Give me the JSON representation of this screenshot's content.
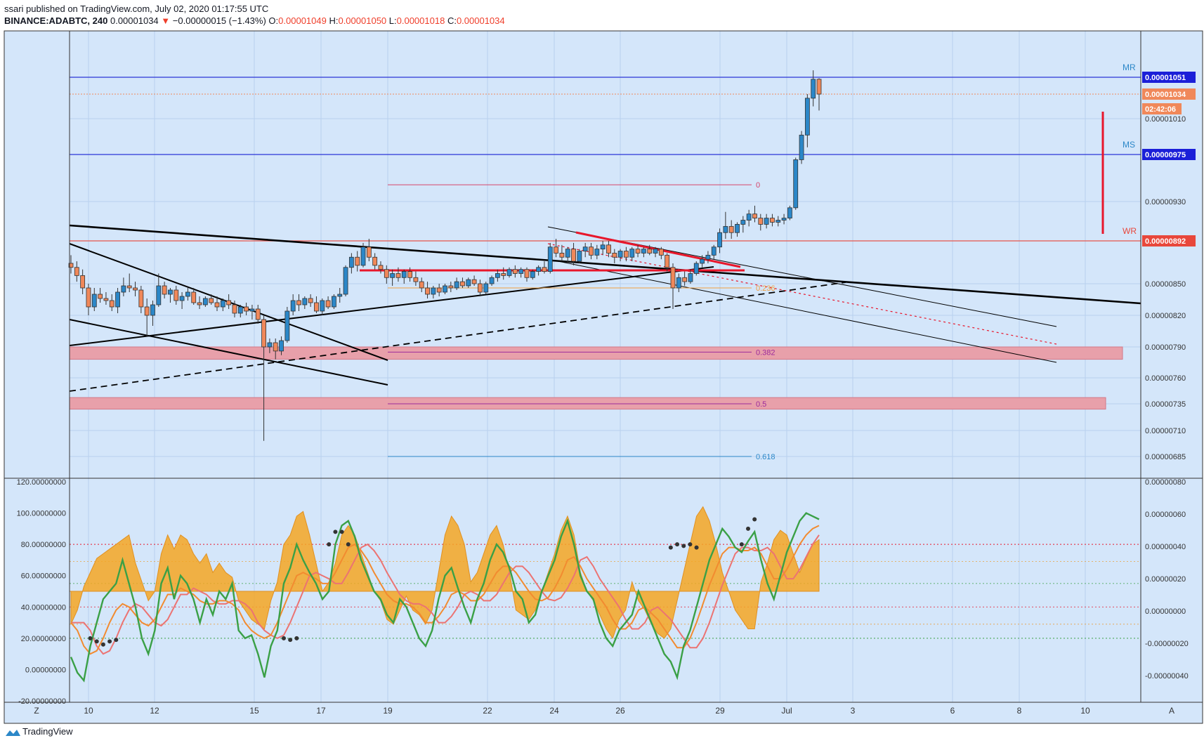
{
  "header": {
    "published": "ssari published on TradingView.com, July 02, 2020 01:17:55 UTC",
    "symbol": "BINANCE:ADABTC, 240",
    "last": "0.00001034",
    "arrow": "▼",
    "change": "−0.00000015 (−1.43%)",
    "o_label": "O:",
    "o": "0.00001049",
    "h_label": "H:",
    "h": "0.00001050",
    "l_label": "L:",
    "l": "0.00001018",
    "c_label": "C:",
    "c": "0.00001034"
  },
  "colors": {
    "background": "#d4e6fa",
    "up": "#2b87c8",
    "down": "#f0885a",
    "trend": "#000000",
    "red": "#e8162b",
    "zone": "#e8a0aa",
    "fill": "#f5a623",
    "green": "#3aa046",
    "orangeLine": "#f28b30",
    "pinkLine": "#ec7372"
  },
  "price_axis": {
    "ticks": [
      "0.00001010",
      "0.00000930",
      "0.00000850",
      "0.00000820",
      "0.00000790",
      "0.00000760",
      "0.00000735",
      "0.00000710",
      "0.00000685"
    ],
    "labels": [
      {
        "text": "0.00001051",
        "tag": "MR",
        "kind": "blue"
      },
      {
        "text": "0.00001034",
        "kind": "orange"
      },
      {
        "text": "02:42:06",
        "kind": "orange-small"
      },
      {
        "text": "0.00000975",
        "tag": "MS",
        "kind": "blue"
      },
      {
        "text": "0.00000892",
        "tag": "WR",
        "kind": "red"
      }
    ]
  },
  "fib_labels": [
    "0",
    "0.236",
    "0.382",
    "0.5",
    "0.618"
  ],
  "time_axis": {
    "left_button": "Z",
    "right_button": "A",
    "ticks": [
      "10",
      "12",
      "15",
      "17",
      "19",
      "22",
      "24",
      "26",
      "29",
      "Jul",
      "3",
      "6",
      "8",
      "10"
    ]
  },
  "indicator_axis": {
    "left_ticks": [
      "120.00000000",
      "100.00000000",
      "80.00000000",
      "60.00000000",
      "40.00000000",
      "20.00000000",
      "0.00000000",
      "-20.00000000"
    ],
    "right_ticks": [
      "0.00000080",
      "0.00000060",
      "0.00000040",
      "0.00000020",
      "0.00000000",
      "-0.00000020",
      "-0.00000040"
    ]
  },
  "footer": {
    "brand": "TradingView"
  },
  "chart_data": {
    "type": "candlestick",
    "title": "BINANCE:ADABTC, 240",
    "ohlc": [
      [
        8.7e-06,
        8.78e-06,
        8.6e-06,
        8.66e-06
      ],
      [
        8.66e-06,
        8.72e-06,
        8.52e-06,
        8.58e-06
      ],
      [
        8.58e-06,
        8.64e-06,
        8.4e-06,
        8.46e-06
      ],
      [
        8.46e-06,
        8.5e-06,
        8.2e-06,
        8.28e-06
      ],
      [
        8.28e-06,
        8.46e-06,
        8.24e-06,
        8.4e-06
      ],
      [
        8.4e-06,
        8.46e-06,
        8.32e-06,
        8.36e-06
      ],
      [
        8.36e-06,
        8.42e-06,
        8.3e-06,
        8.34e-06
      ],
      [
        8.34e-06,
        8.4e-06,
        8.24e-06,
        8.28e-06
      ],
      [
        8.28e-06,
        8.46e-06,
        8.22e-06,
        8.42e-06
      ],
      [
        8.42e-06,
        8.56e-06,
        8.38e-06,
        8.48e-06
      ],
      [
        8.48e-06,
        8.6e-06,
        8.42e-06,
        8.46e-06
      ],
      [
        8.46e-06,
        8.52e-06,
        8.38e-06,
        8.44e-06
      ],
      [
        8.44e-06,
        8.48e-06,
        8.22e-06,
        8.28e-06
      ],
      [
        8.28e-06,
        8.36e-06,
        8e-06,
        8.2e-06
      ],
      [
        8.2e-06,
        8.34e-06,
        8.1e-06,
        8.3e-06
      ],
      [
        8.3e-06,
        8.6e-06,
        8.28e-06,
        8.48e-06
      ],
      [
        8.48e-06,
        8.52e-06,
        8.36e-06,
        8.4e-06
      ],
      [
        8.4e-06,
        8.46e-06,
        8.32e-06,
        8.44e-06
      ],
      [
        8.44e-06,
        8.48e-06,
        8.3e-06,
        8.34e-06
      ],
      [
        8.34e-06,
        8.42e-06,
        8.26e-06,
        8.38e-06
      ],
      [
        8.38e-06,
        8.46e-06,
        8.34e-06,
        8.42e-06
      ],
      [
        8.42e-06,
        8.46e-06,
        8.3e-06,
        8.32e-06
      ],
      [
        8.32e-06,
        8.38e-06,
        8.26e-06,
        8.3e-06
      ],
      [
        8.3e-06,
        8.38e-06,
        8.28e-06,
        8.36e-06
      ],
      [
        8.36e-06,
        8.4e-06,
        8.3e-06,
        8.32e-06
      ],
      [
        8.32e-06,
        8.38e-06,
        8.24e-06,
        8.28e-06
      ],
      [
        8.28e-06,
        8.36e-06,
        8.24e-06,
        8.34e-06
      ],
      [
        8.34e-06,
        8.4e-06,
        8.26e-06,
        8.3e-06
      ],
      [
        8.3e-06,
        8.34e-06,
        8.18e-06,
        8.22e-06
      ],
      [
        8.22e-06,
        8.3e-06,
        8.18e-06,
        8.28e-06
      ],
      [
        8.28e-06,
        8.32e-06,
        8.2e-06,
        8.24e-06
      ],
      [
        8.24e-06,
        8.3e-06,
        8.16e-06,
        8.26e-06
      ],
      [
        8.26e-06,
        8.3e-06,
        8.12e-06,
        8.16e-06
      ],
      [
        8.16e-06,
        8.2e-06,
        7e-06,
        7.9e-06
      ],
      [
        7.9e-06,
        7.98e-06,
        7.84e-06,
        7.94e-06
      ],
      [
        7.94e-06,
        7.98e-06,
        7.78e-06,
        7.86e-06
      ],
      [
        7.86e-06,
        8e-06,
        7.82e-06,
        7.96e-06
      ],
      [
        7.96e-06,
        8.28e-06,
        7.94e-06,
        8.24e-06
      ],
      [
        8.24e-06,
        8.4e-06,
        8.2e-06,
        8.34e-06
      ],
      [
        8.34e-06,
        8.4e-06,
        8.24e-06,
        8.3e-06
      ],
      [
        8.3e-06,
        8.38e-06,
        8.26e-06,
        8.36e-06
      ],
      [
        8.36e-06,
        8.4e-06,
        8.28e-06,
        8.32e-06
      ],
      [
        8.32e-06,
        8.38e-06,
        8.22e-06,
        8.24e-06
      ],
      [
        8.24e-06,
        8.36e-06,
        8.2e-06,
        8.34e-06
      ],
      [
        8.34e-06,
        8.38e-06,
        8.26e-06,
        8.28e-06
      ],
      [
        8.28e-06,
        8.4e-06,
        8.26e-06,
        8.38e-06
      ],
      [
        8.38e-06,
        8.46e-06,
        8.32e-06,
        8.4e-06
      ],
      [
        8.4e-06,
        8.68e-06,
        8.38e-06,
        8.66e-06
      ],
      [
        8.66e-06,
        8.8e-06,
        8.6e-06,
        8.76e-06
      ],
      [
        8.76e-06,
        8.82e-06,
        8.62e-06,
        8.68e-06
      ],
      [
        8.68e-06,
        8.9e-06,
        8.66e-06,
        8.86e-06
      ],
      [
        8.86e-06,
        8.94e-06,
        8.72e-06,
        8.76e-06
      ],
      [
        8.76e-06,
        8.8e-06,
        8.64e-06,
        8.68e-06
      ],
      [
        8.68e-06,
        8.72e-06,
        8.6e-06,
        8.64e-06
      ],
      [
        8.64e-06,
        8.68e-06,
        8.5e-06,
        8.56e-06
      ],
      [
        8.56e-06,
        8.64e-06,
        8.48e-06,
        8.6e-06
      ],
      [
        8.6e-06,
        8.66e-06,
        8.52e-06,
        8.56e-06
      ],
      [
        8.56e-06,
        8.64e-06,
        8.5e-06,
        8.62e-06
      ],
      [
        8.62e-06,
        8.66e-06,
        8.52e-06,
        8.56e-06
      ],
      [
        8.56e-06,
        8.62e-06,
        8.48e-06,
        8.52e-06
      ],
      [
        8.52e-06,
        8.56e-06,
        8.42e-06,
        8.46e-06
      ],
      [
        8.46e-06,
        8.52e-06,
        8.36e-06,
        8.4e-06
      ],
      [
        8.4e-06,
        8.48e-06,
        8.36e-06,
        8.46e-06
      ],
      [
        8.46e-06,
        8.5e-06,
        8.38e-06,
        8.42e-06
      ],
      [
        8.42e-06,
        8.5e-06,
        8.4e-06,
        8.48e-06
      ],
      [
        8.48e-06,
        8.52e-06,
        8.42e-06,
        8.46e-06
      ],
      [
        8.46e-06,
        8.56e-06,
        8.44e-06,
        8.52e-06
      ],
      [
        8.52e-06,
        8.56e-06,
        8.46e-06,
        8.48e-06
      ],
      [
        8.48e-06,
        8.56e-06,
        8.46e-06,
        8.54e-06
      ],
      [
        8.54e-06,
        8.58e-06,
        8.48e-06,
        8.5e-06
      ],
      [
        8.5e-06,
        8.54e-06,
        8.38e-06,
        8.42e-06
      ],
      [
        8.42e-06,
        8.52e-06,
        8.4e-06,
        8.5e-06
      ],
      [
        8.5e-06,
        8.58e-06,
        8.48e-06,
        8.56e-06
      ],
      [
        8.56e-06,
        8.64e-06,
        8.52e-06,
        8.6e-06
      ],
      [
        8.6e-06,
        8.66e-06,
        8.54e-06,
        8.58e-06
      ],
      [
        8.58e-06,
        8.66e-06,
        8.56e-06,
        8.64e-06
      ],
      [
        8.64e-06,
        8.68e-06,
        8.56e-06,
        8.6e-06
      ],
      [
        8.6e-06,
        8.66e-06,
        8.56e-06,
        8.64e-06
      ],
      [
        8.64e-06,
        8.66e-06,
        8.52e-06,
        8.56e-06
      ],
      [
        8.56e-06,
        8.64e-06,
        8.54e-06,
        8.62e-06
      ],
      [
        8.62e-06,
        8.68e-06,
        8.58e-06,
        8.66e-06
      ],
      [
        8.66e-06,
        8.72e-06,
        8.6e-06,
        8.62e-06
      ],
      [
        8.62e-06,
        8.9e-06,
        8.6e-06,
        8.86e-06
      ],
      [
        8.86e-06,
        8.94e-06,
        8.76e-06,
        8.8e-06
      ],
      [
        8.8e-06,
        8.88e-06,
        8.72e-06,
        8.76e-06
      ],
      [
        8.76e-06,
        8.86e-06,
        8.7e-06,
        8.84e-06
      ],
      [
        8.84e-06,
        8.9e-06,
        8.68e-06,
        8.72e-06
      ],
      [
        8.72e-06,
        8.84e-06,
        8.7e-06,
        8.82e-06
      ],
      [
        8.82e-06,
        8.9e-06,
        8.76e-06,
        8.86e-06
      ],
      [
        8.86e-06,
        8.9e-06,
        8.74e-06,
        8.78e-06
      ],
      [
        8.78e-06,
        8.88e-06,
        8.74e-06,
        8.84e-06
      ],
      [
        8.84e-06,
        8.92e-06,
        8.78e-06,
        8.88e-06
      ],
      [
        8.88e-06,
        8.92e-06,
        8.76e-06,
        8.8e-06
      ],
      [
        8.8e-06,
        8.84e-06,
        8.7e-06,
        8.76e-06
      ],
      [
        8.76e-06,
        8.84e-06,
        8.72e-06,
        8.82e-06
      ],
      [
        8.82e-06,
        8.86e-06,
        8.72e-06,
        8.76e-06
      ],
      [
        8.76e-06,
        8.86e-06,
        8.72e-06,
        8.84e-06
      ],
      [
        8.84e-06,
        8.88e-06,
        8.76e-06,
        8.8e-06
      ],
      [
        8.8e-06,
        8.86e-06,
        8.76e-06,
        8.84e-06
      ],
      [
        8.84e-06,
        8.88e-06,
        8.78e-06,
        8.8e-06
      ],
      [
        8.8e-06,
        8.86e-06,
        8.76e-06,
        8.84e-06
      ],
      [
        8.84e-06,
        8.86e-06,
        8.74e-06,
        8.78e-06
      ],
      [
        8.78e-06,
        8.8e-06,
        8.62e-06,
        8.66e-06
      ],
      [
        8.66e-06,
        8.7e-06,
        8.26e-06,
        8.46e-06
      ],
      [
        8.46e-06,
        8.6e-06,
        8.42e-06,
        8.56e-06
      ],
      [
        8.56e-06,
        8.62e-06,
        8.48e-06,
        8.52e-06
      ],
      [
        8.52e-06,
        8.64e-06,
        8.5e-06,
        8.6e-06
      ],
      [
        8.6e-06,
        8.72e-06,
        8.58e-06,
        8.7e-06
      ],
      [
        8.7e-06,
        8.78e-06,
        8.66e-06,
        8.74e-06
      ],
      [
        8.74e-06,
        8.82e-06,
        8.7e-06,
        8.78e-06
      ],
      [
        8.78e-06,
        8.88e-06,
        8.74e-06,
        8.86e-06
      ],
      [
        8.86e-06,
        9.04e-06,
        8.8e-06,
        9e-06
      ],
      [
        9e-06,
        9.2e-06,
        8.94e-06,
        9.06e-06
      ],
      [
        9.06e-06,
        9.12e-06,
        8.94e-06,
        9e-06
      ],
      [
        9e-06,
        9.1e-06,
        8.96e-06,
        9.08e-06
      ],
      [
        9.08e-06,
        9.16e-06,
        9e-06,
        9.12e-06
      ],
      [
        9.12e-06,
        9.22e-06,
        9.06e-06,
        9.18e-06
      ],
      [
        9.18e-06,
        9.26e-06,
        9.1e-06,
        9.14e-06
      ],
      [
        9.14e-06,
        9.18e-06,
        9.02e-06,
        9.08e-06
      ],
      [
        9.08e-06,
        9.18e-06,
        9.04e-06,
        9.14e-06
      ],
      [
        9.14e-06,
        9.18e-06,
        9.06e-06,
        9.1e-06
      ],
      [
        9.1e-06,
        9.16e-06,
        9.06e-06,
        9.12e-06
      ],
      [
        9.12e-06,
        9.18e-06,
        9.08e-06,
        9.14e-06
      ],
      [
        9.14e-06,
        9.26e-06,
        9.12e-06,
        9.24e-06
      ],
      [
        9.24e-06,
        9.72e-06,
        9.22e-06,
        9.7e-06
      ],
      [
        9.7e-06,
        9.98e-06,
        9.66e-06,
        9.94e-06
      ],
      [
        9.94e-06,
        1.034e-05,
        9.82e-06,
        1.03e-05
      ],
      [
        1.03e-05,
        1.058e-05,
        1.022e-05,
        1.049e-05
      ],
      [
        1.049e-05,
        1.05e-05,
        1.018e-05,
        1.034e-05
      ]
    ],
    "horizontal_levels": [
      {
        "label": "MR",
        "value": 1.051e-05
      },
      {
        "label": "MS",
        "value": 9.75e-06
      },
      {
        "label": "WR",
        "value": 8.92e-06
      },
      {
        "label": "last",
        "value": 1.034e-05
      }
    ],
    "fib_levels": [
      {
        "label": "0",
        "value": 9.46e-06
      },
      {
        "label": "0.236",
        "value": 8.46e-06
      },
      {
        "label": "0.382",
        "value": 7.85e-06
      },
      {
        "label": "0.5",
        "value": 7.35e-06
      },
      {
        "label": "0.618",
        "value": 6.85e-06
      }
    ],
    "support_zones": [
      {
        "from": 7.78e-06,
        "to": 7.9e-06
      },
      {
        "from": 7.3e-06,
        "to": 7.41e-06
      }
    ],
    "x_ticks": [
      "10",
      "12",
      "15",
      "17",
      "19",
      "22",
      "24",
      "26",
      "29",
      "Jul",
      "3",
      "6",
      "8",
      "10"
    ],
    "indicator": {
      "ylim": [
        -20,
        120
      ],
      "levels": [
        80,
        20
      ],
      "green": [
        8,
        -2,
        -7,
        15,
        30,
        45,
        50,
        55,
        70,
        55,
        40,
        20,
        10,
        25,
        55,
        65,
        45,
        60,
        55,
        45,
        30,
        45,
        35,
        50,
        45,
        55,
        25,
        20,
        22,
        10,
        -5,
        15,
        25,
        55,
        65,
        80,
        70,
        62,
        55,
        45,
        50,
        80,
        92,
        95,
        85,
        70,
        60,
        50,
        45,
        35,
        30,
        45,
        40,
        30,
        20,
        15,
        25,
        45,
        60,
        65,
        52,
        40,
        30,
        45,
        55,
        70,
        80,
        75,
        65,
        50,
        45,
        30,
        35,
        50,
        60,
        70,
        85,
        95,
        80,
        60,
        50,
        45,
        30,
        20,
        15,
        25,
        30,
        35,
        50,
        40,
        30,
        20,
        10,
        5,
        -5,
        15,
        25,
        40,
        55,
        70,
        80,
        90,
        85,
        78,
        75,
        82,
        88,
        70,
        55,
        45,
        60,
        75,
        85,
        95,
        100,
        98,
        96
      ],
      "orange": [
        30,
        25,
        15,
        10,
        12,
        20,
        30,
        38,
        42,
        40,
        35,
        30,
        28,
        32,
        40,
        48,
        48,
        52,
        50,
        48,
        44,
        42,
        42,
        44,
        44,
        42,
        38,
        30,
        25,
        22,
        20,
        22,
        30,
        40,
        50,
        60,
        62,
        60,
        58,
        55,
        55,
        62,
        70,
        78,
        80,
        76,
        70,
        62,
        55,
        48,
        44,
        42,
        42,
        40,
        36,
        30,
        30,
        34,
        40,
        48,
        50,
        48,
        44,
        44,
        48,
        55,
        62,
        66,
        66,
        62,
        56,
        50,
        45,
        44,
        46,
        52,
        60,
        70,
        72,
        66,
        58,
        52,
        46,
        40,
        32,
        26,
        26,
        30,
        38,
        40,
        36,
        32,
        26,
        20,
        14,
        14,
        20,
        30,
        42,
        54,
        64,
        74,
        78,
        78,
        76,
        76,
        78,
        74,
        66,
        58,
        58,
        64,
        72,
        80,
        86,
        90,
        92
      ],
      "histogram": [
        -35,
        -20,
        5,
        20,
        35,
        40,
        45,
        50,
        55,
        60,
        30,
        10,
        -10,
        0,
        40,
        60,
        45,
        60,
        55,
        40,
        30,
        40,
        20,
        30,
        20,
        15,
        -10,
        -20,
        -30,
        -35,
        -40,
        -10,
        10,
        50,
        60,
        80,
        85,
        60,
        30,
        0,
        10,
        30,
        60,
        70,
        60,
        40,
        20,
        0,
        -10,
        -30,
        -35,
        -20,
        -5,
        -20,
        -25,
        -35,
        -20,
        20,
        60,
        80,
        70,
        50,
        10,
        20,
        40,
        60,
        70,
        50,
        20,
        -20,
        -25,
        -30,
        -20,
        0,
        20,
        40,
        65,
        80,
        60,
        20,
        0,
        -10,
        -25,
        -40,
        -50,
        -30,
        -20,
        10,
        -10,
        -20,
        -35,
        -45,
        -50,
        -40,
        -10,
        20,
        50,
        80,
        90,
        75,
        50,
        20,
        0,
        -20,
        -30,
        -40,
        -40,
        10,
        30,
        55,
        65,
        60,
        40,
        20,
        35,
        50,
        55
      ]
    }
  }
}
